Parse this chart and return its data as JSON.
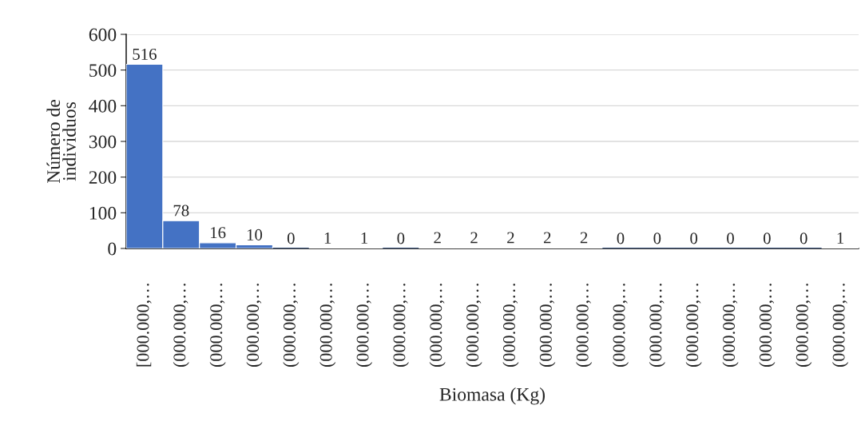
{
  "chart_data": {
    "type": "bar",
    "xlabel": "Biomasa (Kg)",
    "ylabel": "Número de\nindividuos",
    "categories": [
      "[000.000,…",
      "(000.000,…",
      "(000.000,…",
      "(000.000,…",
      "(000.000,…",
      "(000.000,…",
      "(000.000,…",
      "(000.000,…",
      "(000.000,…",
      "(000.000,…",
      "(000.000,…",
      "(000.000,…",
      "(000.000,…",
      "(000.000,…",
      "(000.000,…",
      "(000.000,…",
      "(000.000,…",
      "(000.000,…",
      "(000.000,…",
      "(000.000,…"
    ],
    "values": [
      516,
      78,
      16,
      10,
      0,
      1,
      1,
      0,
      2,
      2,
      2,
      2,
      2,
      0,
      0,
      0,
      0,
      0,
      0,
      1
    ],
    "color": "#4472c4",
    "ylim": [
      0,
      600
    ],
    "yticks": [
      0,
      100,
      200,
      300,
      400,
      500,
      600
    ],
    "grid": "y",
    "data_labels": true
  }
}
